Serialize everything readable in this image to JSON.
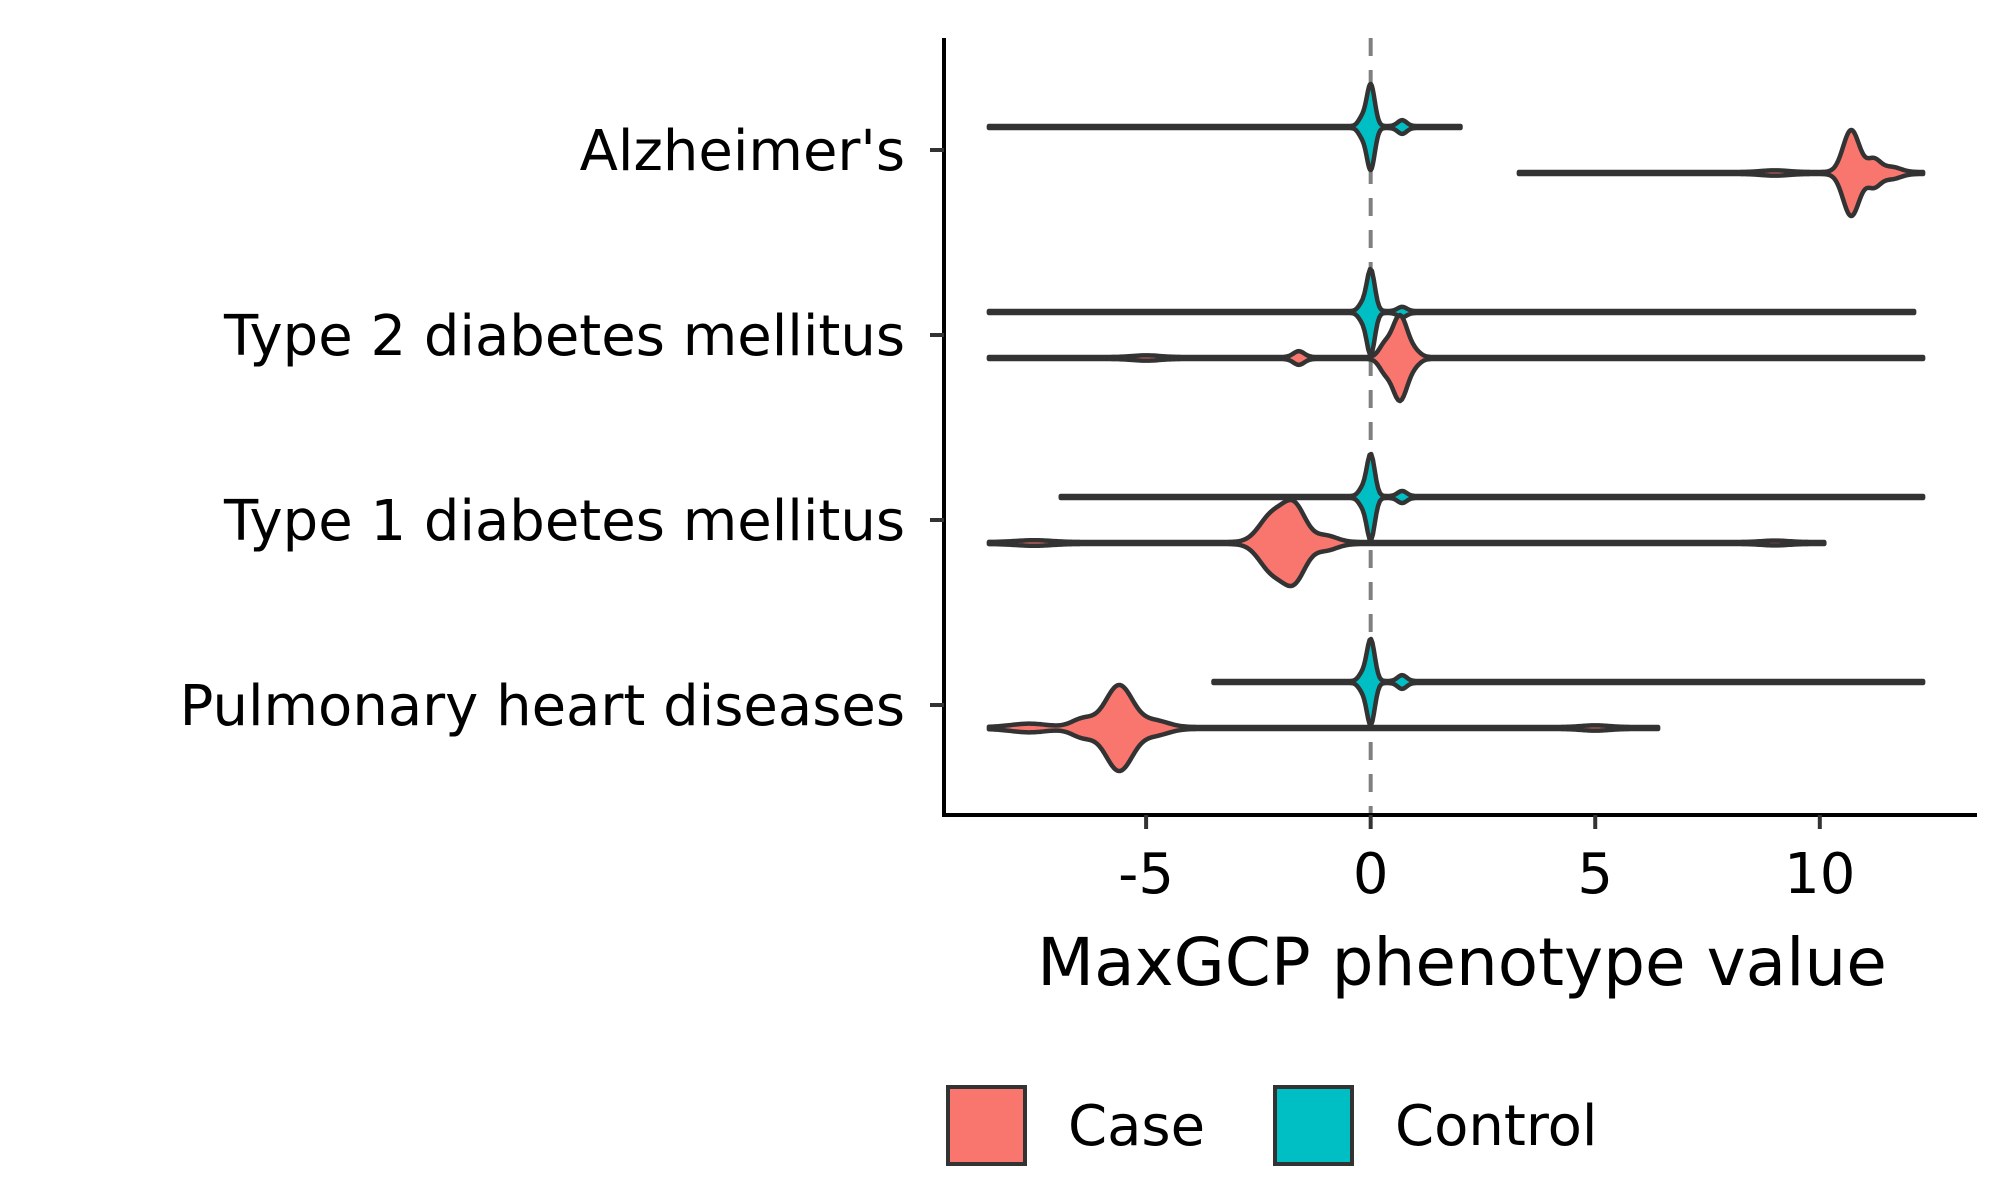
{
  "chart_data": {
    "type": "violin",
    "orientation": "horizontal",
    "xlabel": "MaxGCP phenotype value",
    "ylabel": "",
    "xlim": [
      -9.5,
      13.5
    ],
    "xticks": [
      {
        "value": -5,
        "label": "-5"
      },
      {
        "value": 0,
        "label": "0"
      },
      {
        "value": 5,
        "label": "5"
      },
      {
        "value": 10,
        "label": "10"
      }
    ],
    "reference_line": {
      "x": 0,
      "style": "dashed",
      "color": "#808080"
    },
    "grid": false,
    "legend": {
      "position": "bottom",
      "items": [
        {
          "name": "Case",
          "color": "#F8766D"
        },
        {
          "name": "Control",
          "color": "#00BFC4"
        }
      ]
    },
    "categories": [
      "Alzheimer's",
      "Type 2 diabetes mellitus",
      "Type 1 diabetes mellitus",
      "Pulmonary heart diseases"
    ],
    "groups": [
      {
        "category": "Alzheimer's",
        "control": {
          "min": -8.5,
          "max": 2.0,
          "peaks": [
            {
              "x": 0.0,
              "h": 1.0,
              "w": 0.09
            },
            {
              "x": -0.2,
              "h": 0.18,
              "w": 0.08
            },
            {
              "x": 0.7,
              "h": 0.14,
              "w": 0.1
            }
          ]
        },
        "case": {
          "min": 3.3,
          "max": 12.3,
          "peaks": [
            {
              "x": 10.7,
              "h": 1.0,
              "w": 0.18
            },
            {
              "x": 11.2,
              "h": 0.3,
              "w": 0.15
            },
            {
              "x": 11.6,
              "h": 0.12,
              "w": 0.2
            },
            {
              "x": 9.0,
              "h": 0.04,
              "w": 0.3
            }
          ]
        }
      },
      {
        "category": "Type 2 diabetes mellitus",
        "control": {
          "min": -8.5,
          "max": 12.1,
          "peaks": [
            {
              "x": 0.0,
              "h": 1.0,
              "w": 0.09
            },
            {
              "x": -0.2,
              "h": 0.15,
              "w": 0.08
            },
            {
              "x": 0.7,
              "h": 0.1,
              "w": 0.1
            }
          ]
        },
        "case": {
          "min": -8.5,
          "max": 12.3,
          "peaks": [
            {
              "x": 0.65,
              "h": 1.0,
              "w": 0.17
            },
            {
              "x": 0.3,
              "h": 0.25,
              "w": 0.12
            },
            {
              "x": -1.6,
              "h": 0.14,
              "w": 0.12
            },
            {
              "x": 1.0,
              "h": 0.1,
              "w": 0.12
            },
            {
              "x": -5.0,
              "h": 0.04,
              "w": 0.3
            }
          ]
        }
      },
      {
        "category": "Type 1 diabetes mellitus",
        "control": {
          "min": -6.9,
          "max": 12.3,
          "peaks": [
            {
              "x": 0.0,
              "h": 1.0,
              "w": 0.09
            },
            {
              "x": -0.2,
              "h": 0.15,
              "w": 0.08
            },
            {
              "x": 0.7,
              "h": 0.12,
              "w": 0.1
            }
          ]
        },
        "case": {
          "min": -8.5,
          "max": 10.1,
          "peaks": [
            {
              "x": -2.2,
              "h": 0.75,
              "w": 0.28
            },
            {
              "x": -1.7,
              "h": 1.0,
              "w": 0.25
            },
            {
              "x": -1.0,
              "h": 0.18,
              "w": 0.25
            },
            {
              "x": -7.5,
              "h": 0.05,
              "w": 0.4
            },
            {
              "x": 9.0,
              "h": 0.04,
              "w": 0.3
            }
          ]
        }
      },
      {
        "category": "Pulmonary heart diseases",
        "control": {
          "min": -3.5,
          "max": 12.3,
          "peaks": [
            {
              "x": 0.0,
              "h": 1.0,
              "w": 0.09
            },
            {
              "x": -0.2,
              "h": 0.15,
              "w": 0.08
            },
            {
              "x": 0.7,
              "h": 0.14,
              "w": 0.1
            }
          ]
        },
        "case": {
          "min": -8.5,
          "max": 6.4,
          "peaks": [
            {
              "x": -5.6,
              "h": 1.0,
              "w": 0.3
            },
            {
              "x": -6.4,
              "h": 0.2,
              "w": 0.25
            },
            {
              "x": -4.8,
              "h": 0.15,
              "w": 0.3
            },
            {
              "x": -7.6,
              "h": 0.08,
              "w": 0.4
            },
            {
              "x": 5.0,
              "h": 0.04,
              "w": 0.3
            }
          ]
        }
      }
    ]
  }
}
